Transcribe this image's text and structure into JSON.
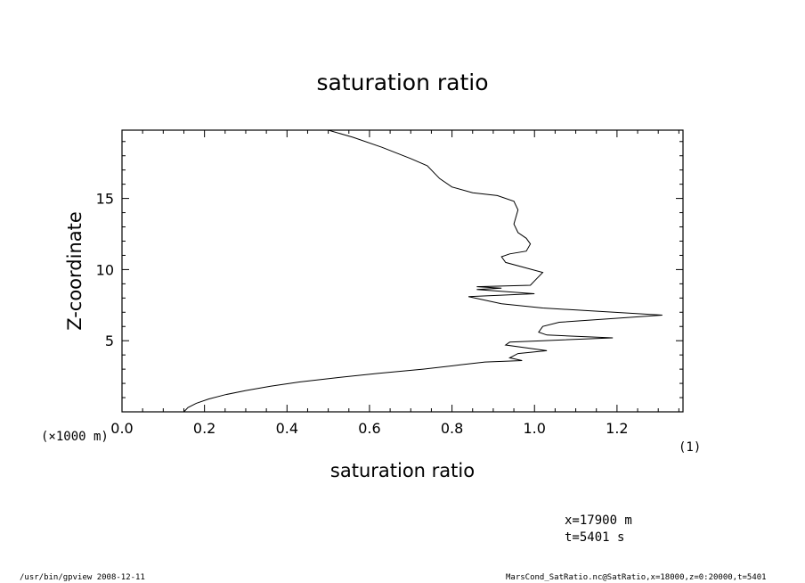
{
  "chart_data": {
    "type": "line",
    "title": "saturation ratio",
    "xlabel": "saturation ratio",
    "ylabel": "Z-coordinate",
    "x_unit_note": "(1)",
    "y_unit_note": "(×1000 m)",
    "xlim": [
      0.0,
      1.36
    ],
    "ylim": [
      0.0,
      19.8
    ],
    "x_ticks": [
      "0.0",
      "0.2",
      "0.4",
      "0.6",
      "0.8",
      "1.0",
      "1.2"
    ],
    "y_ticks": [
      "5",
      "10",
      "15"
    ],
    "grid": false,
    "series": [
      {
        "x": [
          0.15,
          0.16,
          0.18,
          0.21,
          0.25,
          0.3,
          0.36,
          0.43,
          0.52,
          0.62,
          0.73,
          0.82,
          0.88,
          0.97,
          0.94,
          0.96,
          1.03,
          0.93,
          0.94,
          1.02,
          1.19,
          1.03,
          1.01,
          1.02,
          1.06,
          1.31,
          1.02,
          0.92,
          0.84,
          1.0,
          0.86,
          0.92,
          0.86,
          0.99,
          1.0,
          1.02,
          0.93,
          0.92,
          0.94,
          0.98,
          0.99,
          0.98,
          0.96,
          0.95,
          0.96,
          0.95,
          0.91,
          0.85,
          0.8,
          0.77,
          0.74,
          0.7,
          0.63,
          0.56,
          0.5
        ],
        "y": [
          0.0,
          0.3,
          0.6,
          0.9,
          1.2,
          1.5,
          1.8,
          2.1,
          2.4,
          2.7,
          3.0,
          3.3,
          3.5,
          3.6,
          3.8,
          4.1,
          4.3,
          4.7,
          4.9,
          5.0,
          5.2,
          5.4,
          5.6,
          6.0,
          6.3,
          6.8,
          7.3,
          7.6,
          8.1,
          8.3,
          8.6,
          8.7,
          8.8,
          8.9,
          9.2,
          9.8,
          10.5,
          10.9,
          11.1,
          11.3,
          11.8,
          12.2,
          12.6,
          13.2,
          14.2,
          14.8,
          15.2,
          15.4,
          15.8,
          16.4,
          17.3,
          17.8,
          18.6,
          19.3,
          19.8
        ]
      }
    ]
  },
  "annotations": {
    "info_x": "x=17900  m",
    "info_t": "t=5401  s",
    "footer_left": "/usr/bin/gpview   2008-12-11",
    "footer_right": "MarsCond_SatRatio.nc@SatRatio,x=18000,z=0:20000,t=5401"
  }
}
